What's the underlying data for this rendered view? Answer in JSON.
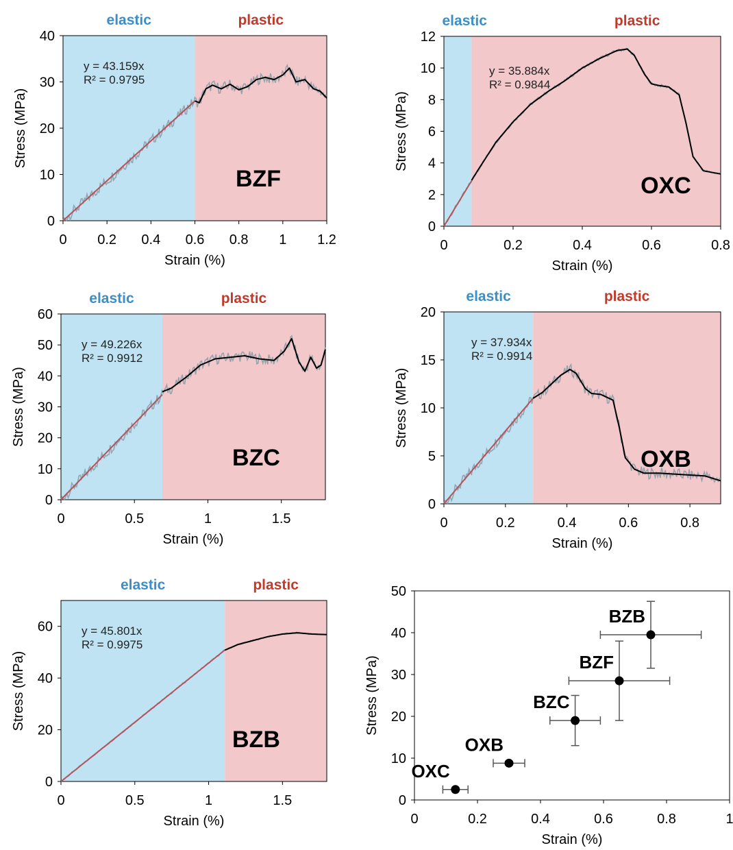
{
  "colors": {
    "elastic_fill": "#bfe3f2",
    "plastic_fill": "#f2c8cb",
    "elastic_text": "#3a8fc8",
    "plastic_text": "#c0392b",
    "fit_line": "#b5535a",
    "raw_curve": "#8a9aa6",
    "smooth_curve": "#000000",
    "marker": "#000000",
    "errorbar": "#555555"
  },
  "chart_data": [
    {
      "id": "bzf",
      "type": "line",
      "sample_label": "BZF",
      "elastic_label": "elastic",
      "plastic_label": "plastic",
      "fit_equation": "y = 43.159x",
      "fit_r2": "R² = 0.9795",
      "xlabel": "Strain (%)",
      "ylabel": "Stress (MPa)",
      "xlim": [
        0,
        1.2
      ],
      "ylim": [
        0,
        40
      ],
      "xticks": [
        0,
        0.2,
        0.4,
        0.6,
        0.8,
        1,
        1.2
      ],
      "xtick_labels": [
        "0",
        "0.2",
        "0.4",
        "0.6",
        "0.8",
        "1",
        "1.2"
      ],
      "yticks": [
        0,
        10,
        20,
        30,
        40
      ],
      "ytick_labels": [
        "0",
        "10",
        "20",
        "30",
        "40"
      ],
      "elastic_end": 0.6,
      "fit_slope": 43.159,
      "fit_end": 0.6,
      "curve": {
        "x": [
          0.6,
          0.62,
          0.65,
          0.68,
          0.72,
          0.76,
          0.8,
          0.84,
          0.88,
          0.92,
          0.96,
          1.0,
          1.03,
          1.06,
          1.1,
          1.14,
          1.17,
          1.2
        ],
        "y": [
          25.9,
          25.5,
          28.5,
          29.3,
          28.5,
          29.5,
          28.3,
          29.0,
          30.5,
          31.0,
          30.5,
          31.5,
          33.0,
          30.0,
          30.5,
          28.5,
          28.0,
          26.5
        ]
      }
    },
    {
      "id": "oxc",
      "type": "line",
      "sample_label": "OXC",
      "elastic_label": "elastic",
      "plastic_label": "plastic",
      "fit_equation": "y = 35.884x",
      "fit_r2": "R² = 0.9844",
      "xlabel": "Strain (%)",
      "ylabel": "Stress (MPa)",
      "xlim": [
        0,
        0.8
      ],
      "ylim": [
        0,
        12
      ],
      "xticks": [
        0,
        0.2,
        0.4,
        0.6,
        0.8
      ],
      "xtick_labels": [
        "0",
        "0.2",
        "0.4",
        "0.6",
        "0.8"
      ],
      "yticks": [
        0,
        2,
        4,
        6,
        8,
        10,
        12
      ],
      "ytick_labels": [
        "0",
        "2",
        "4",
        "6",
        "8",
        "10",
        "12"
      ],
      "elastic_end": 0.08,
      "fit_slope": 35.884,
      "fit_end": 0.08,
      "curve": {
        "x": [
          0.08,
          0.1,
          0.15,
          0.2,
          0.25,
          0.3,
          0.35,
          0.4,
          0.45,
          0.5,
          0.53,
          0.55,
          0.58,
          0.6,
          0.62,
          0.65,
          0.68,
          0.7,
          0.72,
          0.75,
          0.8
        ],
        "y": [
          2.9,
          3.6,
          5.3,
          6.6,
          7.7,
          8.5,
          9.2,
          10.0,
          10.6,
          11.1,
          11.2,
          10.8,
          9.6,
          9.0,
          8.9,
          8.8,
          8.3,
          6.5,
          4.4,
          3.5,
          3.3
        ]
      }
    },
    {
      "id": "bzc",
      "type": "line",
      "sample_label": "BZC",
      "elastic_label": "elastic",
      "plastic_label": "plastic",
      "fit_equation": "y = 49.226x",
      "fit_r2": "R² = 0.9912",
      "xlabel": "Strain (%)",
      "ylabel": "Stress (MPa)",
      "xlim": [
        0,
        1.8
      ],
      "ylim": [
        0,
        60
      ],
      "xticks": [
        0,
        0.5,
        1,
        1.5
      ],
      "xtick_labels": [
        "0",
        "0.5",
        "1",
        "1.5"
      ],
      "yticks": [
        0,
        10,
        20,
        30,
        40,
        50,
        60
      ],
      "ytick_labels": [
        "0",
        "10",
        "20",
        "30",
        "40",
        "50",
        "60"
      ],
      "elastic_end": 0.69,
      "fit_slope": 49.226,
      "fit_end": 0.69,
      "curve": {
        "x": [
          0.69,
          0.75,
          0.85,
          0.95,
          1.05,
          1.15,
          1.25,
          1.35,
          1.45,
          1.52,
          1.57,
          1.62,
          1.66,
          1.7,
          1.74,
          1.77,
          1.8
        ],
        "y": [
          34.9,
          36.0,
          39.5,
          43.5,
          45.5,
          46.0,
          46.5,
          45.5,
          45.0,
          48.0,
          52.0,
          44.5,
          41.5,
          46.0,
          42.5,
          43.5,
          48.5
        ]
      }
    },
    {
      "id": "oxb",
      "type": "line",
      "sample_label": "OXB",
      "elastic_label": "elastic",
      "plastic_label": "plastic",
      "fit_equation": "y = 37.934x",
      "fit_r2": "R² = 0.9914",
      "xlabel": "Strain (%)",
      "ylabel": "Stress (MPa)",
      "xlim": [
        0,
        0.9
      ],
      "ylim": [
        0,
        20
      ],
      "xticks": [
        0,
        0.2,
        0.4,
        0.6,
        0.8
      ],
      "xtick_labels": [
        "0",
        "0.2",
        "0.4",
        "0.6",
        "0.8"
      ],
      "yticks": [
        0,
        5,
        10,
        15,
        20
      ],
      "ytick_labels": [
        "0",
        "5",
        "10",
        "15",
        "20"
      ],
      "elastic_end": 0.29,
      "fit_slope": 37.934,
      "fit_end": 0.29,
      "curve": {
        "x": [
          0.29,
          0.32,
          0.35,
          0.38,
          0.41,
          0.43,
          0.46,
          0.48,
          0.51,
          0.55,
          0.57,
          0.59,
          0.62,
          0.65,
          0.7,
          0.75,
          0.8,
          0.85,
          0.9
        ],
        "y": [
          11.0,
          11.6,
          12.5,
          13.4,
          14.0,
          13.6,
          12.0,
          11.5,
          11.4,
          10.8,
          8.0,
          4.8,
          3.6,
          3.2,
          3.2,
          3.1,
          3.0,
          2.9,
          2.4
        ]
      }
    },
    {
      "id": "bzb",
      "type": "line",
      "sample_label": "BZB",
      "elastic_label": "elastic",
      "plastic_label": "plastic",
      "fit_equation": "y = 45.801x",
      "fit_r2": "R² = 0.9975",
      "xlabel": "Strain (%)",
      "ylabel": "Stress (MPa)",
      "xlim": [
        0,
        1.8
      ],
      "ylim": [
        0,
        70
      ],
      "xticks": [
        0,
        0.5,
        1,
        1.5
      ],
      "xtick_labels": [
        "0",
        "0.5",
        "1",
        "1.5"
      ],
      "yticks": [
        0,
        20,
        40,
        60
      ],
      "ytick_labels": [
        "0",
        "20",
        "40",
        "60"
      ],
      "elastic_end": 1.11,
      "fit_slope": 45.801,
      "fit_end": 1.11,
      "curve": {
        "x": [
          1.11,
          1.2,
          1.3,
          1.4,
          1.5,
          1.6,
          1.7,
          1.8
        ],
        "y": [
          50.8,
          53.0,
          54.5,
          56.0,
          57.0,
          57.5,
          57.0,
          56.8
        ]
      }
    },
    {
      "id": "summary",
      "type": "scatter",
      "xlabel": "Strain (%)",
      "ylabel": "Stress (MPa)",
      "xlim": [
        0,
        1
      ],
      "ylim": [
        0,
        50
      ],
      "xticks": [
        0,
        0.2,
        0.4,
        0.6,
        0.8,
        1
      ],
      "xtick_labels": [
        "0",
        "0.2",
        "0.4",
        "0.6",
        "0.8",
        "1"
      ],
      "yticks": [
        0,
        10,
        20,
        30,
        40,
        50
      ],
      "ytick_labels": [
        "0",
        "10",
        "20",
        "30",
        "40",
        "50"
      ],
      "points": [
        {
          "label": "OXC",
          "x": 0.13,
          "y": 2.5,
          "xerr": 0.04,
          "yerr": 0
        },
        {
          "label": "OXB",
          "x": 0.3,
          "y": 8.8,
          "xerr": 0.05,
          "yerr": 0
        },
        {
          "label": "BZC",
          "x": 0.51,
          "y": 19.0,
          "xerr": 0.08,
          "yerr": 6.0
        },
        {
          "label": "BZF",
          "x": 0.65,
          "y": 28.5,
          "xerr": 0.16,
          "yerr": 9.5
        },
        {
          "label": "BZB",
          "x": 0.75,
          "y": 39.5,
          "xerr": 0.16,
          "yerr": 8.0
        }
      ]
    }
  ]
}
